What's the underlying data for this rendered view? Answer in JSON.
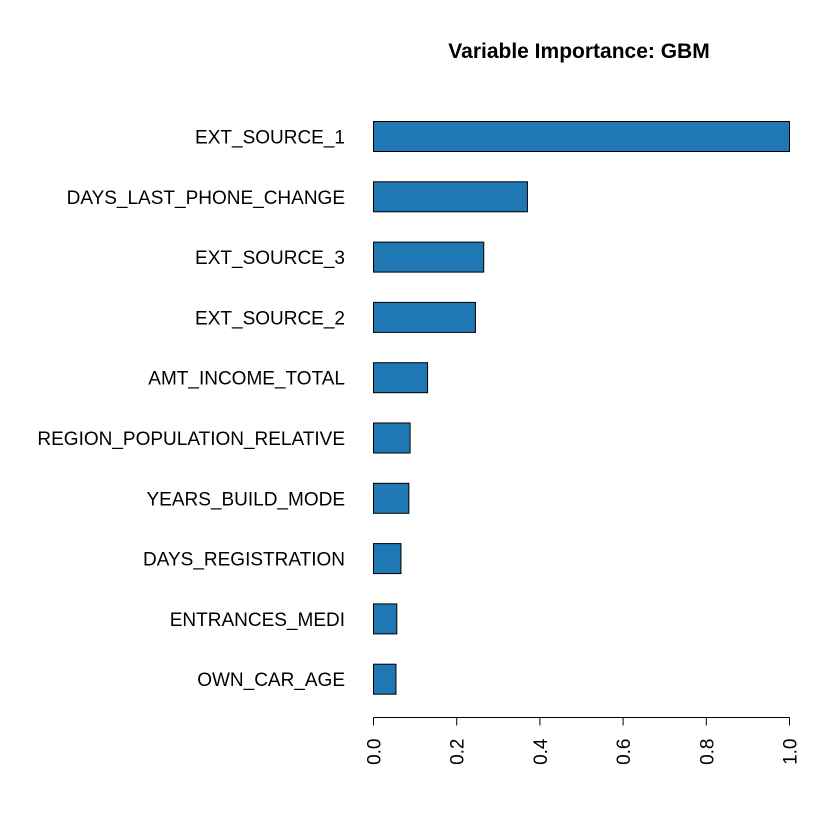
{
  "chart_data": {
    "type": "bar",
    "orientation": "horizontal",
    "title": "Variable Importance: GBM",
    "xlabel": "",
    "ylabel": "",
    "categories": [
      "EXT_SOURCE_1",
      "DAYS_LAST_PHONE_CHANGE",
      "EXT_SOURCE_3",
      "EXT_SOURCE_2",
      "AMT_INCOME_TOTAL",
      "REGION_POPULATION_RELATIVE",
      "YEARS_BUILD_MODE",
      "DAYS_REGISTRATION",
      "ENTRANCES_MEDI",
      "OWN_CAR_AGE"
    ],
    "values": [
      1.0,
      0.37,
      0.265,
      0.245,
      0.13,
      0.088,
      0.085,
      0.066,
      0.056,
      0.054
    ],
    "xlim": [
      0,
      1
    ],
    "xticks": [
      0.0,
      0.2,
      0.4,
      0.6,
      0.8,
      1.0
    ],
    "xtick_labels": [
      "0.0",
      "0.2",
      "0.4",
      "0.6",
      "0.8",
      "1.0"
    ],
    "bar_color": "#1f78b4",
    "grid": false,
    "legend": "none"
  }
}
